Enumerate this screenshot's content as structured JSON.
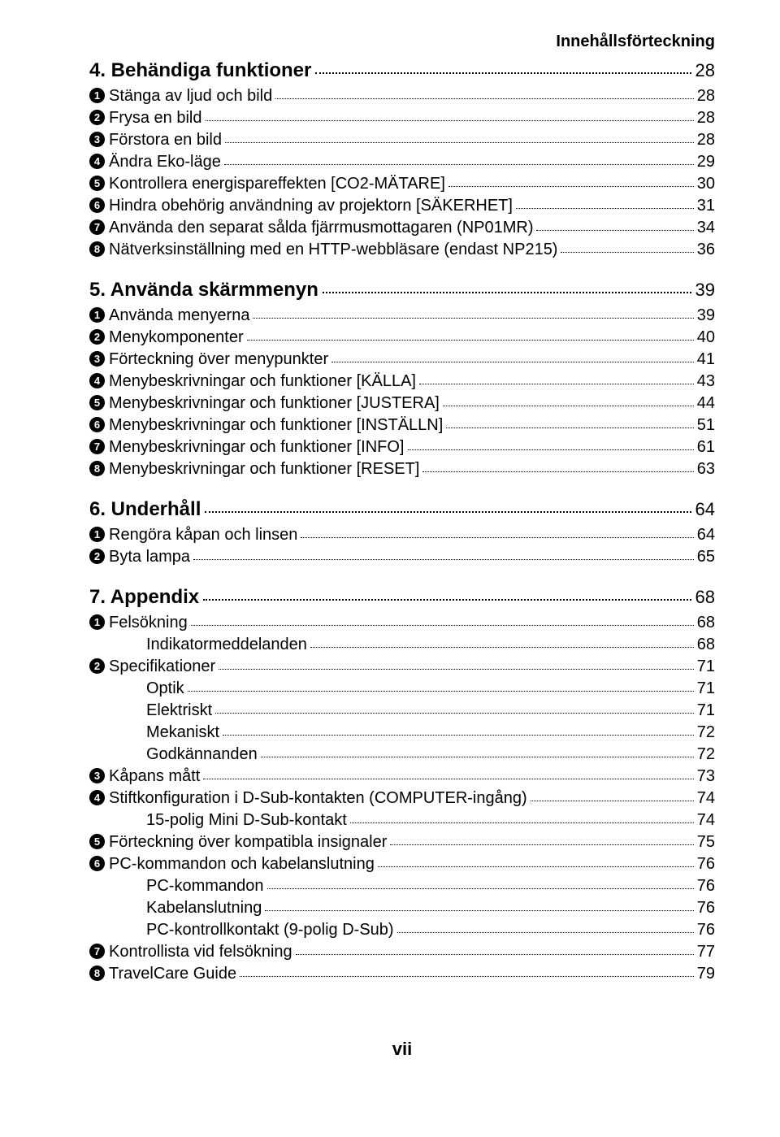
{
  "header": "Innehållsförteckning",
  "sections": [
    {
      "num": "4.",
      "title": "Behändiga funktioner",
      "page": "28",
      "items": [
        {
          "n": "1",
          "label": "Stänga av ljud och bild",
          "page": "28"
        },
        {
          "n": "2",
          "label": "Frysa en bild",
          "page": "28"
        },
        {
          "n": "3",
          "label": "Förstora en bild",
          "page": "28"
        },
        {
          "n": "4",
          "label": "Ändra Eko-läge",
          "page": "29"
        },
        {
          "n": "5",
          "label": "Kontrollera energispareffekten [CO2-MÄTARE]",
          "page": "30"
        },
        {
          "n": "6",
          "label": "Hindra obehörig användning av projektorn [SÄKERHET]",
          "page": "31"
        },
        {
          "n": "7",
          "label": "Använda den separat sålda fjärrmusmottagaren (NP01MR)",
          "page": "34"
        },
        {
          "n": "8",
          "label": "Nätverksinställning med en HTTP-webbläsare (endast NP215)",
          "page": "36"
        }
      ]
    },
    {
      "num": "5.",
      "title": "Använda skärmmenyn",
      "page": "39",
      "items": [
        {
          "n": "1",
          "label": "Använda menyerna",
          "page": "39"
        },
        {
          "n": "2",
          "label": "Menykomponenter",
          "page": "40"
        },
        {
          "n": "3",
          "label": "Förteckning över menypunkter",
          "page": "41"
        },
        {
          "n": "4",
          "label": "Menybeskrivningar och funktioner [KÄLLA]",
          "page": "43"
        },
        {
          "n": "5",
          "label": "Menybeskrivningar och funktioner [JUSTERA]",
          "page": "44"
        },
        {
          "n": "6",
          "label": "Menybeskrivningar och funktioner [INSTÄLLN]",
          "page": "51"
        },
        {
          "n": "7",
          "label": "Menybeskrivningar och funktioner [INFO]",
          "page": "61"
        },
        {
          "n": "8",
          "label": "Menybeskrivningar och funktioner [RESET]",
          "page": "63"
        }
      ]
    },
    {
      "num": "6.",
      "title": "Underhåll",
      "page": "64",
      "items": [
        {
          "n": "1",
          "label": "Rengöra kåpan och linsen",
          "page": "64"
        },
        {
          "n": "2",
          "label": "Byta lampa",
          "page": "65"
        }
      ]
    },
    {
      "num": "7.",
      "title": "Appendix",
      "page": "68",
      "items": [
        {
          "n": "1",
          "label": "Felsökning",
          "page": "68",
          "subs": [
            {
              "label": "Indikatormeddelanden",
              "page": "68"
            }
          ]
        },
        {
          "n": "2",
          "label": "Specifikationer",
          "page": "71",
          "subs": [
            {
              "label": "Optik",
              "page": "71"
            },
            {
              "label": "Elektriskt",
              "page": "71"
            },
            {
              "label": "Mekaniskt",
              "page": "72"
            },
            {
              "label": "Godkännanden",
              "page": "72"
            }
          ]
        },
        {
          "n": "3",
          "label": "Kåpans mått",
          "page": "73"
        },
        {
          "n": "4",
          "label": "Stiftkonfiguration i D-Sub-kontakten (COMPUTER-ingång)",
          "page": "74",
          "subs": [
            {
              "label": "15-polig Mini D-Sub-kontakt",
              "page": "74"
            }
          ]
        },
        {
          "n": "5",
          "label": "Förteckning över kompatibla insignaler",
          "page": "75"
        },
        {
          "n": "6",
          "label": "PC-kommandon och kabelanslutning",
          "page": "76",
          "subs": [
            {
              "label": "PC-kommandon",
              "page": "76"
            },
            {
              "label": "Kabelanslutning",
              "page": "76"
            },
            {
              "label": "PC-kontrollkontakt (9-polig D-Sub)",
              "page": "76"
            }
          ]
        },
        {
          "n": "7",
          "label": "Kontrollista vid felsökning",
          "page": "77"
        },
        {
          "n": "8",
          "label": "TravelCare Guide",
          "page": "79"
        }
      ]
    }
  ],
  "footer": "vii"
}
